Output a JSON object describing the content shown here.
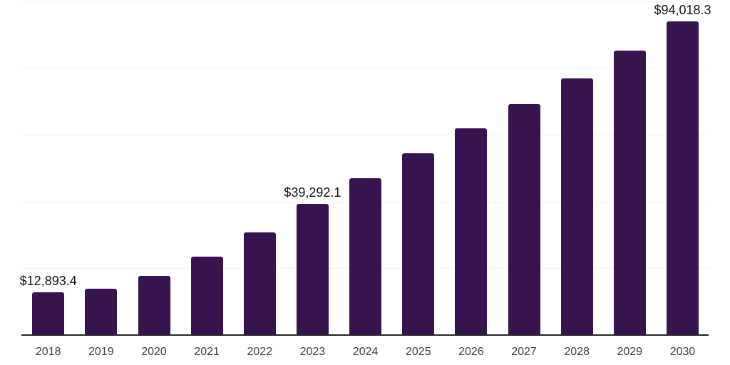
{
  "chart_data": {
    "type": "bar",
    "title": "",
    "xlabel": "",
    "ylabel": "",
    "categories": [
      "2018",
      "2019",
      "2020",
      "2021",
      "2022",
      "2023",
      "2024",
      "2025",
      "2026",
      "2027",
      "2028",
      "2029",
      "2030"
    ],
    "values": [
      12893.4,
      13800,
      17700,
      23600,
      30800,
      39292.1,
      47000,
      54500,
      61900,
      69200,
      77000,
      85200,
      94018.3
    ],
    "point_labels": [
      "$12,893.4",
      "",
      "",
      "",
      "",
      "$39,292.1",
      "",
      "",
      "",
      "",
      "",
      "",
      "$94,018.3"
    ],
    "ylim": [
      0,
      100000
    ],
    "grid_interval": 20000,
    "grid": true,
    "legend": false,
    "colors": {
      "bar": "#371450",
      "grid": "#f3f3f3",
      "axis": "#262626",
      "data_label": "#141414",
      "tick_label": "#404040",
      "background": "#ffffff"
    }
  }
}
